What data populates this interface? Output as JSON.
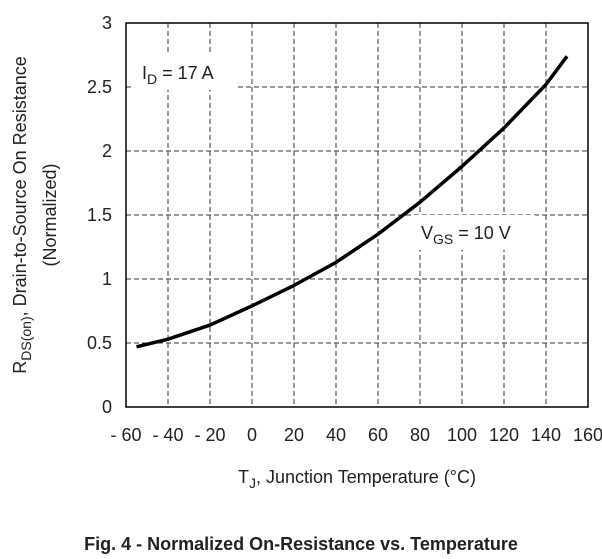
{
  "chart_data": {
    "type": "line",
    "title": "Fig. 4 - Normalized On-Resistance vs. Temperature",
    "x_label": {
      "main": "T",
      "sub": "J",
      "rest": ", Junction Temperature (°C)"
    },
    "y_label": {
      "main": "R",
      "sub": "DS(on)",
      "rest": ", Drain-to-Source On Resistance",
      "line2": "(Normalized)"
    },
    "annotations": [
      {
        "main": "I",
        "sub": "D",
        "rest": " = 17 A"
      },
      {
        "main": "V",
        "sub": "GS",
        "rest": " = 10 V"
      }
    ],
    "x": [
      -55,
      -40,
      -20,
      0,
      20,
      40,
      60,
      80,
      100,
      120,
      140,
      150
    ],
    "series": [
      {
        "color": "#000000",
        "values": [
          0.47,
          0.53,
          0.64,
          0.79,
          0.95,
          1.13,
          1.35,
          1.6,
          1.88,
          2.18,
          2.52,
          2.74
        ]
      }
    ],
    "xlim": [
      -60,
      160
    ],
    "ylim": [
      0,
      3
    ],
    "xticks": [
      {
        "value": -60,
        "label": "- 60"
      },
      {
        "value": -40,
        "label": "- 40"
      },
      {
        "value": -20,
        "label": "- 20"
      },
      0,
      20,
      40,
      60,
      80,
      100,
      120,
      140,
      160
    ],
    "yticks": [
      0,
      0.5,
      1,
      1.5,
      2,
      2.5,
      3
    ],
    "grid": true
  }
}
